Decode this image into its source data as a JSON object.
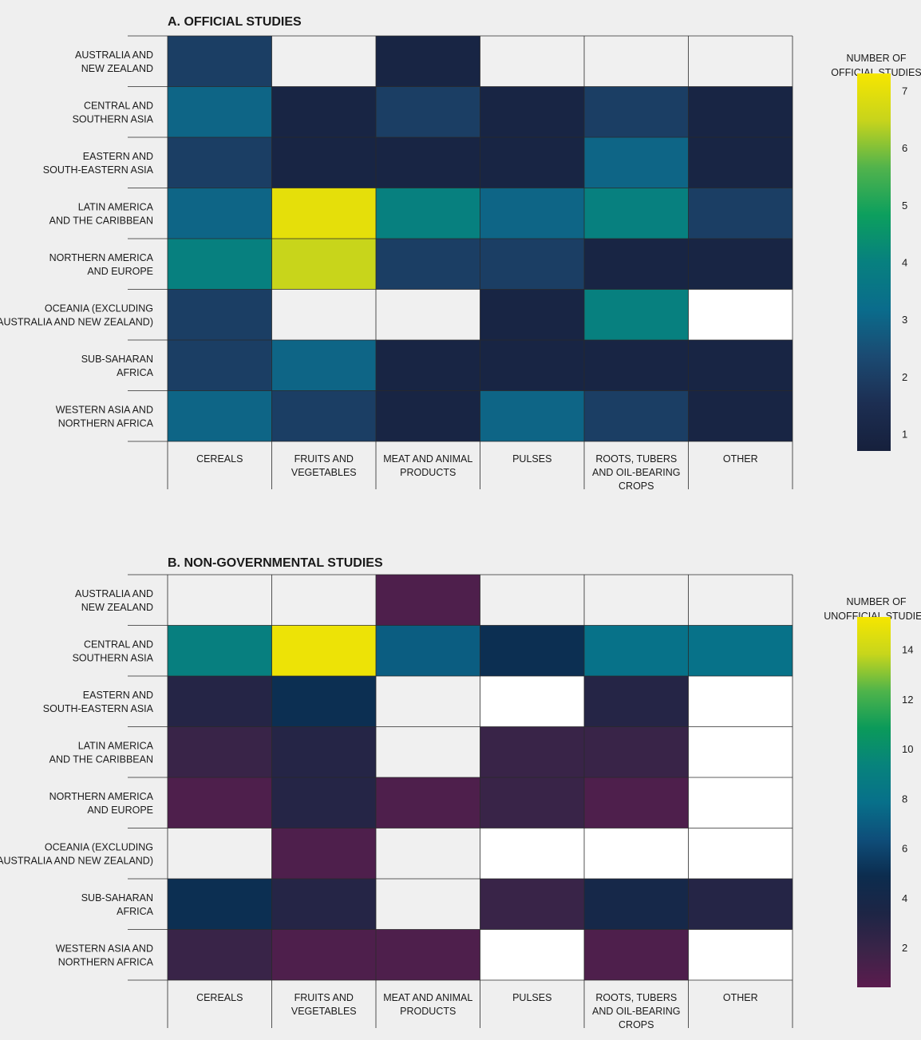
{
  "chart_data": [
    {
      "type": "heatmap",
      "title": "A. OFFICIAL STUDIES",
      "rows": [
        [
          "AUSTRALIA AND",
          "NEW ZEALAND"
        ],
        [
          "CENTRAL AND",
          "SOUTHERN ASIA"
        ],
        [
          "EASTERN AND",
          "SOUTH-EASTERN ASIA"
        ],
        [
          "LATIN AMERICA",
          "AND THE CARIBBEAN"
        ],
        [
          "NORTHERN AMERICA",
          "AND EUROPE"
        ],
        [
          "OCEANIA (EXCLUDING",
          "AUSTRALIA AND NEW ZEALAND)"
        ],
        [
          "SUB-SAHARAN",
          "AFRICA"
        ],
        [
          "WESTERN ASIA AND",
          "NORTHERN AFRICA"
        ]
      ],
      "columns": [
        [
          "CEREALS"
        ],
        [
          "FRUITS AND",
          "VEGETABLES"
        ],
        [
          "MEAT AND ANIMAL",
          "PRODUCTS"
        ],
        [
          "PULSES"
        ],
        [
          "ROOTS, TUBERS",
          "AND OIL-BEARING",
          "CROPS"
        ],
        [
          "OTHER"
        ]
      ],
      "values": [
        [
          2,
          null,
          1,
          null,
          null,
          null
        ],
        [
          3,
          1,
          2,
          1,
          2,
          1
        ],
        [
          2,
          1,
          1,
          1,
          3,
          1
        ],
        [
          3,
          7,
          4,
          3,
          4,
          2
        ],
        [
          4,
          6.5,
          2,
          2,
          1,
          1
        ],
        [
          2,
          null,
          null,
          1,
          4,
          0
        ],
        [
          2,
          3,
          1,
          1,
          1,
          1
        ],
        [
          3,
          2,
          1,
          3,
          2,
          1
        ]
      ],
      "legend": {
        "title": [
          "NUMBER OF",
          "OFFICIAL STUDIES"
        ],
        "ticks": [
          1,
          2,
          3,
          4,
          5,
          6,
          7
        ],
        "range": [
          0.7,
          7.3
        ]
      },
      "colors": {
        "no_data": "#f0f0f0",
        "zero": "#ffffff",
        "scale": [
          "#16203c",
          "#1c2e52",
          "#1b4a72",
          "#0a6c8c",
          "#07807f",
          "#0c9f5e",
          "#51b34c",
          "#c7d41c",
          "#f6e600"
        ]
      }
    },
    {
      "type": "heatmap",
      "title": "B. NON-GOVERNMENTAL STUDIES",
      "rows": [
        [
          "AUSTRALIA AND",
          "NEW ZEALAND"
        ],
        [
          "CENTRAL AND",
          "SOUTHERN ASIA"
        ],
        [
          "EASTERN AND",
          "SOUTH-EASTERN ASIA"
        ],
        [
          "LATIN AMERICA",
          "AND THE CARIBBEAN"
        ],
        [
          "NORTHERN AMERICA",
          "AND EUROPE"
        ],
        [
          "OCEANIA (EXCLUDING",
          "AUSTRALIA AND NEW ZEALAND)"
        ],
        [
          "SUB-SAHARAN",
          "AFRICA"
        ],
        [
          "WESTERN ASIA AND",
          "NORTHERN AFRICA"
        ]
      ],
      "columns": [
        [
          "CEREALS"
        ],
        [
          "FRUITS AND",
          "VEGETABLES"
        ],
        [
          "MEAT AND ANIMAL",
          "PRODUCTS"
        ],
        [
          "PULSES"
        ],
        [
          "ROOTS, TUBERS",
          "AND OIL-BEARING",
          "CROPS"
        ],
        [
          "OTHER"
        ]
      ],
      "values": [
        [
          null,
          null,
          1,
          null,
          null,
          null
        ],
        [
          9,
          15,
          7,
          5,
          8,
          8
        ],
        [
          3,
          5,
          null,
          0,
          3,
          0
        ],
        [
          2,
          3,
          null,
          2,
          2,
          0
        ],
        [
          1,
          3,
          1,
          2,
          1,
          0
        ],
        [
          null,
          1,
          null,
          0,
          0,
          0
        ],
        [
          5,
          3,
          null,
          2,
          4,
          3
        ],
        [
          2,
          1,
          1,
          0,
          1,
          0
        ]
      ],
      "legend": {
        "title": [
          "NUMBER OF",
          "UNOFFICIAL STUDIES"
        ],
        "ticks": [
          2,
          4,
          6,
          8,
          10,
          12,
          14
        ],
        "range": [
          0.4,
          15.3
        ]
      },
      "colors": {
        "no_data": "#f0f0f0",
        "zero": "#ffffff",
        "scale": [
          "#5b1b4e",
          "#3b2448",
          "#1d2545",
          "#0c2c4e",
          "#0e4e7a",
          "#07708a",
          "#07837c",
          "#0b9a5a",
          "#4fb44a",
          "#c7d61c",
          "#f6e600"
        ]
      }
    }
  ]
}
